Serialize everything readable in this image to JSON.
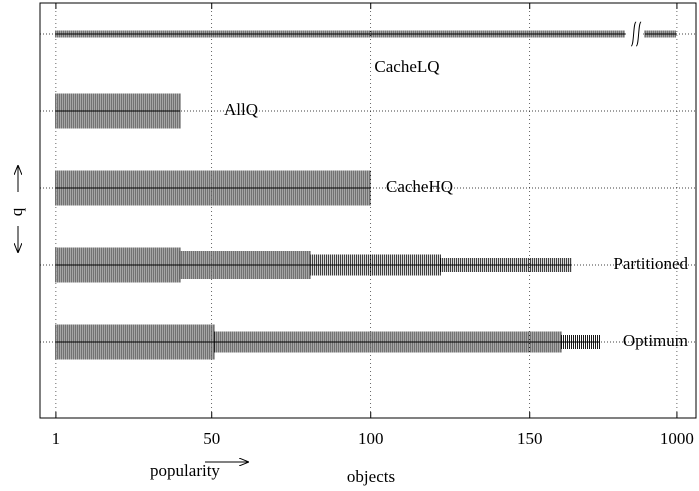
{
  "chart_data": {
    "type": "strip",
    "xlabel": "popularity",
    "xlabel2": "objects",
    "ylabel": "q",
    "xlim": [
      -4,
      1006
    ],
    "x_break": [
      180,
      990
    ],
    "xticks": [
      1,
      50,
      100,
      150,
      1000
    ],
    "grid": true,
    "qlim": [
      0,
      6
    ],
    "color": "#000000",
    "rows": [
      {
        "name": "CacheLQ",
        "segments": [
          {
            "start": 1,
            "end": 1000,
            "q": 1
          }
        ]
      },
      {
        "name": "AllQ",
        "segments": [
          {
            "start": 1,
            "end": 40,
            "q": 5
          }
        ]
      },
      {
        "name": "CacheHQ",
        "segments": [
          {
            "start": 1,
            "end": 100,
            "q": 5
          }
        ]
      },
      {
        "name": "Partitioned",
        "segments": [
          {
            "start": 1,
            "end": 40,
            "q": 5
          },
          {
            "start": 40,
            "end": 81,
            "q": 4
          },
          {
            "start": 81,
            "end": 122,
            "q": 3
          },
          {
            "start": 122,
            "end": 163,
            "q": 2
          }
        ]
      },
      {
        "name": "Optimum",
        "segments": [
          {
            "start": 1,
            "end": 51,
            "q": 5
          },
          {
            "start": 51,
            "end": 160,
            "q": 3
          },
          {
            "start": 160,
            "end": 172,
            "q": 2
          }
        ]
      }
    ]
  }
}
